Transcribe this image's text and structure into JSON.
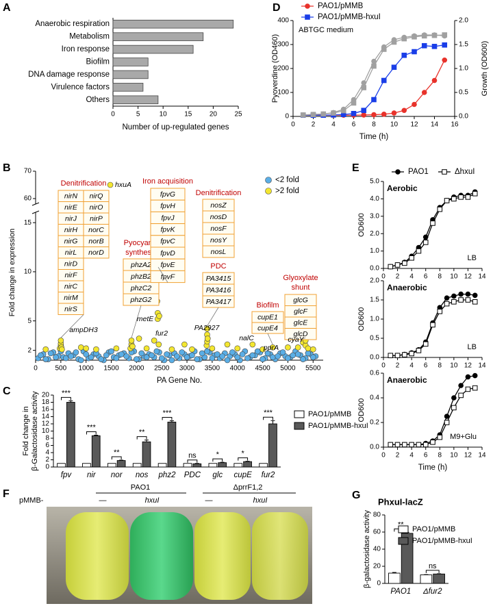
{
  "chart_data": [
    {
      "panel": "A",
      "type": "bar",
      "orientation": "horizontal",
      "categories": [
        "Anaerobic respiration",
        "Metabolism",
        "Iron response",
        "Biofilm",
        "DNA damage response",
        "Virulence factors",
        "Others"
      ],
      "values": [
        24,
        18,
        16,
        7,
        7,
        6,
        9
      ],
      "color": "#a9a9a9",
      "xlim": [
        0,
        25
      ],
      "xticks": [
        0,
        5,
        10,
        15,
        20,
        25
      ],
      "xlabel": "Number of up-regulated genes"
    },
    {
      "panel": "B",
      "type": "scatter",
      "xlabel": "PA Gene No.",
      "ylabel": "Fold change in expression",
      "xlim": [
        0,
        5700
      ],
      "xticks": [
        0,
        500,
        1000,
        1500,
        2000,
        2500,
        3000,
        3500,
        4000,
        4500,
        5000,
        5500
      ],
      "ylim": [
        1,
        70
      ],
      "ybreak": [
        15.5,
        60
      ],
      "yticks": [
        2,
        5,
        10,
        15,
        60,
        70
      ],
      "series": [
        {
          "name": "<2 fold",
          "color": "#5aaee6",
          "x": [
            50,
            150,
            250,
            350,
            450,
            550,
            650,
            750,
            850,
            950,
            1050,
            1150,
            1250,
            1350,
            1450,
            1550,
            1650,
            1750,
            1850,
            1950,
            2050,
            2150,
            2250,
            2350,
            2450,
            2550,
            2650,
            2750,
            2850,
            2950,
            3050,
            3150,
            3250,
            3350,
            3450,
            3550,
            3650,
            3750,
            3850,
            3950,
            4050,
            4150,
            4250,
            4350,
            4450,
            4550,
            4650,
            4750,
            4850,
            4950,
            5050,
            5150,
            5250,
            5350,
            5450,
            5550,
            100,
            200,
            300,
            400,
            500,
            600,
            700,
            800,
            900,
            1000,
            1100,
            1200,
            1300,
            1400,
            1500,
            1600,
            1700,
            1800,
            1900,
            2000,
            2100,
            2200,
            2300,
            2400,
            2500,
            2600,
            2700,
            2800,
            2900,
            3000,
            3100,
            3200,
            3300,
            3400,
            3500,
            3600,
            3700,
            3800,
            3900,
            4000,
            4100,
            4200,
            4300,
            4400,
            4500,
            4600,
            4700,
            4800,
            4900,
            5000,
            5100,
            5200,
            5300,
            5400,
            5500
          ],
          "values": [
            1.2,
            1.6,
            1.1,
            1.8,
            1.4,
            1.3,
            1.7,
            1.5,
            1.1,
            1.9,
            1.2,
            1.6,
            1.4,
            1.0,
            1.8,
            1.3,
            1.5,
            1.7,
            1.2,
            1.9,
            1.1,
            1.4,
            1.6,
            1.3,
            1.8,
            1.0,
            1.5,
            1.7,
            1.2,
            1.6,
            1.4,
            1.9,
            1.1,
            1.3,
            1.8,
            1.5,
            1.2,
            1.7,
            1.4,
            1.6,
            1.0,
            1.9,
            1.3,
            1.5,
            1.8,
            1.2,
            1.6,
            1.1,
            1.7,
            1.4,
            1.3,
            1.9,
            1.5,
            1.2,
            1.6,
            1.4,
            1.5,
            1.1,
            1.7,
            1.3,
            1.9,
            1.2,
            1.4,
            1.8,
            1.0,
            1.6,
            1.3,
            1.7,
            1.1,
            1.5,
            1.9,
            1.2,
            1.6,
            1.4,
            1.8,
            1.1,
            1.7,
            1.3,
            1.5,
            1.9,
            1.2,
            1.6,
            1.0,
            1.4,
            1.8,
            1.3,
            1.5,
            1.1,
            1.7,
            1.9,
            1.2,
            1.6,
            1.4,
            1.0,
            1.8,
            1.3,
            1.6,
            1.2,
            1.5,
            1.9,
            1.1,
            1.7,
            1.3,
            1.4,
            1.8,
            1.2,
            1.5,
            1.6,
            1.1,
            1.7,
            1.3
          ]
        },
        {
          "name": ">2 fold",
          "color": "#f3e630",
          "x": [
            200,
            480,
            500,
            500,
            500,
            510,
            520,
            900,
            1000,
            1200,
            1480,
            1600,
            1880,
            1900,
            1900,
            1920,
            2050,
            2200,
            2350,
            2410,
            2420,
            2420,
            2420,
            2430,
            2440,
            2450,
            2700,
            2950,
            3100,
            3390,
            3400,
            3400,
            3400,
            3410,
            3500,
            3800,
            4000,
            4300,
            4500,
            4700,
            5000,
            5200,
            5300,
            5350,
            5350,
            5400,
            5500
          ],
          "values": [
            2.1,
            2.2,
            2.5,
            2.7,
            3.0,
            2.3,
            2.1,
            2.3,
            2.2,
            2.1,
            65,
            2.2,
            2.2,
            2.6,
            3.0,
            2.4,
            3.2,
            2.2,
            3.0,
            7.0,
            5.2,
            5.8,
            10.2,
            9.8,
            2.6,
            5.5,
            2.1,
            2.6,
            2.1,
            2.5,
            2.9,
            3.6,
            4.2,
            3.2,
            2.2,
            2.6,
            2.2,
            2.6,
            2.1,
            2.3,
            2.3,
            2.3,
            2.8,
            2.5,
            3.0,
            2.2,
            2.1
          ]
        }
      ],
      "annotations": [
        {
          "title": [
            "Denitrification"
          ],
          "genes": [
            [
              "nirN",
              "nirE",
              "nirJ",
              "nirH",
              "nirG",
              "nirL",
              "nirD",
              "nirF",
              "nirC",
              "nirM",
              "nirS"
            ],
            [
              "nirQ",
              "nirO",
              "nirP",
              "norC",
              "norB",
              "norD"
            ]
          ]
        },
        {
          "title": [
            "Pyocyanin",
            "synthesis"
          ],
          "genes": [
            [
              "phzA2",
              "phzB2",
              "phzC2",
              "phzG2"
            ]
          ]
        },
        {
          "title": [
            "Iron acquisition"
          ],
          "genes": [
            [
              "fpvG",
              "fpvH",
              "fpvJ",
              "fpvK",
              "fpvC",
              "fpvD",
              "fpvE",
              "fpvF"
            ]
          ]
        },
        {
          "title": [
            "Denitrification"
          ],
          "genes": [
            [
              "nosZ",
              "nosD",
              "nosF",
              "nosY",
              "nosL"
            ]
          ]
        },
        {
          "title": [
            "PDC"
          ],
          "genes": [
            [
              "PA3415",
              "PA3416",
              "PA3417"
            ]
          ]
        },
        {
          "title": [
            "Biofilm"
          ],
          "genes": [
            [
              "cupE1",
              "cupE4"
            ]
          ]
        },
        {
          "title": [
            "Glyoxylate",
            "shunt"
          ],
          "genes": [
            [
              "glcG",
              "glcF",
              "glcE",
              "glcD"
            ]
          ]
        }
      ],
      "gene_labels": [
        "hxuA",
        "ampDH3",
        "metE",
        "fur2",
        "PA2927",
        "nalC",
        "pprA",
        "cyaY"
      ]
    },
    {
      "panel": "C",
      "type": "bar",
      "categories": [
        "fpv",
        "nir",
        "nor",
        "nos",
        "phz2",
        "PDC",
        "glc",
        "cupE",
        "fur2"
      ],
      "ylabel": [
        "Fold change in",
        "β-Galactosidase activity"
      ],
      "ylim": [
        0,
        20
      ],
      "yticks": [
        0,
        2,
        4,
        6,
        8,
        10,
        12,
        14,
        16,
        18,
        20
      ],
      "series": [
        {
          "name": "PAO1/pMMB",
          "color": "#ffffff",
          "values": [
            1,
            1,
            1,
            1,
            1,
            1,
            1,
            1,
            1
          ]
        },
        {
          "name": "PAO1/pMMB-hxuI",
          "color": "#595959",
          "values": [
            18,
            8.7,
            1.8,
            7,
            12.5,
            0.9,
            1.2,
            1.5,
            12
          ],
          "errors": [
            0.4,
            0.15,
            0.1,
            0.5,
            0.35,
            0.1,
            0.1,
            0.1,
            0.9
          ]
        }
      ],
      "significance": [
        "***",
        "***",
        "**",
        "**",
        "***",
        "ns",
        "*",
        "*",
        "***"
      ]
    },
    {
      "panel": "D",
      "type": "line",
      "annotation": "ABTGC medium",
      "xlabel": "Time (h)",
      "ylabel": "Pyoverdine (OD460)",
      "y2label": "Growth (OD600)",
      "xlim": [
        0,
        16
      ],
      "xticks": [
        0,
        2,
        4,
        6,
        8,
        10,
        12,
        14,
        16
      ],
      "ylim": [
        0,
        400
      ],
      "yticks": [
        0,
        100,
        200,
        300,
        400
      ],
      "y2lim": [
        0,
        2
      ],
      "y2ticks": [
        {
          "value": 0,
          "label": "0.0"
        },
        0.5,
        {
          "value": 1,
          "label": "1.0"
        },
        1.5,
        {
          "value": 2,
          "label": "2.0"
        }
      ],
      "x": [
        1,
        2,
        3,
        4,
        5,
        6,
        7,
        8,
        9,
        10,
        11,
        12,
        13,
        14,
        15
      ],
      "series": [
        {
          "name": "PAO1/pMMB",
          "color": "#e8322b",
          "marker": "circle",
          "values": [
            5,
            5,
            5,
            5,
            5,
            5,
            6,
            7,
            9,
            14,
            25,
            50,
            100,
            150,
            235
          ]
        },
        {
          "name": "PAO1/pMMB-hxuI",
          "color": "#1a3ee8",
          "marker": "square",
          "values": [
            5,
            5,
            5,
            6,
            8,
            12,
            25,
            70,
            150,
            205,
            255,
            270,
            295,
            292,
            298
          ]
        },
        {
          "color": "#a0a0a0",
          "marker": "circle",
          "axis": "y2",
          "values": [
            0.03,
            0.04,
            0.05,
            0.08,
            0.15,
            0.35,
            0.7,
            1.15,
            1.45,
            1.6,
            1.65,
            1.68,
            1.7,
            1.7,
            1.68
          ]
        },
        {
          "color": "#a0a0a0",
          "marker": "square",
          "axis": "y2",
          "values": [
            0.03,
            0.04,
            0.05,
            0.07,
            0.12,
            0.28,
            0.6,
            1.05,
            1.4,
            1.55,
            1.62,
            1.66,
            1.68,
            1.69,
            1.7
          ]
        }
      ]
    },
    {
      "panel": "E",
      "type": "line",
      "title": "Aerobic",
      "annotation": "LB",
      "ylabel": "OD600",
      "xlim": [
        0,
        14
      ],
      "xticks": [
        0,
        2,
        4,
        6,
        8,
        10,
        12,
        14
      ],
      "ylim": [
        0,
        5
      ],
      "yticks": [
        {
          "value": 0,
          "label": "0.0"
        },
        {
          "value": 1,
          "label": "1.0"
        },
        {
          "value": 2,
          "label": "2.0"
        },
        {
          "value": 3,
          "label": "3.0"
        },
        {
          "value": 4,
          "label": "4.0"
        },
        {
          "value": 5,
          "label": "5.0"
        }
      ],
      "x": [
        1,
        2,
        3,
        4,
        5,
        6,
        7,
        8,
        9,
        10,
        11,
        12,
        13
      ],
      "series": [
        {
          "name": "PAO1",
          "color": "#000000",
          "marker": "circle",
          "values": [
            0.1,
            0.2,
            0.35,
            0.7,
            1.2,
            1.8,
            2.8,
            3.5,
            3.9,
            4.1,
            4.2,
            4.2,
            4.4
          ]
        },
        {
          "name": "ΔhxuI",
          "color": "#000000",
          "marker": "square-open",
          "values": [
            0.1,
            0.2,
            0.3,
            0.6,
            1.0,
            1.5,
            2.6,
            3.4,
            3.9,
            4.0,
            4.1,
            4.1,
            4.3
          ]
        }
      ]
    },
    {
      "type": "line",
      "title": "Anaerobic",
      "annotation": "LB",
      "ylabel": "OD600",
      "xlim": [
        0,
        14
      ],
      "xticks": [
        0,
        2,
        4,
        6,
        8,
        10,
        12,
        14
      ],
      "ylim": [
        0,
        2
      ],
      "yticks": [
        {
          "value": 0,
          "label": "0.0"
        },
        0.5,
        {
          "value": 1,
          "label": "1.0"
        },
        1.5,
        {
          "value": 2,
          "label": "2.0"
        }
      ],
      "x": [
        1,
        2,
        3,
        4,
        5,
        6,
        7,
        8,
        9,
        10,
        11,
        12,
        13
      ],
      "series": [
        {
          "color": "#000000",
          "marker": "circle",
          "values": [
            0.05,
            0.05,
            0.08,
            0.12,
            0.2,
            0.4,
            0.9,
            1.3,
            1.55,
            1.6,
            1.65,
            1.65,
            1.62
          ]
        },
        {
          "color": "#000000",
          "marker": "square-open",
          "values": [
            0.05,
            0.05,
            0.07,
            0.1,
            0.18,
            0.35,
            0.85,
            1.2,
            1.4,
            1.45,
            1.5,
            1.5,
            1.45
          ]
        }
      ]
    },
    {
      "type": "line",
      "title": "Anaerobic",
      "annotation": "M9+Glu",
      "ylabel": "OD600",
      "xlabel": "Time (h)",
      "xlim": [
        0,
        14
      ],
      "xticks": [
        0,
        2,
        4,
        6,
        8,
        10,
        12,
        14
      ],
      "ylim": [
        0,
        0.6
      ],
      "yticks": [
        {
          "value": 0,
          "label": "0.0"
        },
        0.2,
        0.4,
        0.6
      ],
      "x": [
        1,
        2,
        3,
        4,
        5,
        6,
        7,
        8,
        9,
        10,
        11,
        12,
        13
      ],
      "series": [
        {
          "color": "#000000",
          "marker": "circle",
          "values": [
            0.02,
            0.02,
            0.02,
            0.02,
            0.02,
            0.03,
            0.05,
            0.1,
            0.25,
            0.4,
            0.5,
            0.57,
            0.58
          ]
        },
        {
          "color": "#000000",
          "marker": "square-open",
          "values": [
            0.02,
            0.02,
            0.02,
            0.02,
            0.02,
            0.02,
            0.04,
            0.08,
            0.2,
            0.32,
            0.42,
            0.47,
            0.48
          ]
        }
      ]
    },
    {
      "panel": "G",
      "type": "bar",
      "title": "PhxuI-lacZ",
      "categories": [
        "PAO1",
        "Δfur2"
      ],
      "ylabel": [
        "β-galactosidase activity"
      ],
      "ylim": [
        0,
        80
      ],
      "yticks": [
        0,
        20,
        40,
        60,
        80
      ],
      "series": [
        {
          "name": "PAO1/pMMB",
          "color": "#ffffff",
          "values": [
            12,
            10
          ],
          "errors": [
            0.8,
            0.3
          ]
        },
        {
          "name": "PAO1/pMMB-hxuI",
          "color": "#595959",
          "values": [
            58.5,
            11
          ],
          "errors": [
            1.2,
            0.3
          ]
        }
      ],
      "significance": [
        "**",
        "ns"
      ]
    }
  ],
  "panel_f": {
    "panel": "F",
    "strains": [
      "PAO1",
      "ΔprrF1,2"
    ],
    "row_label": "pMMB-",
    "plasmids": [
      "—",
      "hxuI",
      "—",
      "hxuI"
    ]
  }
}
